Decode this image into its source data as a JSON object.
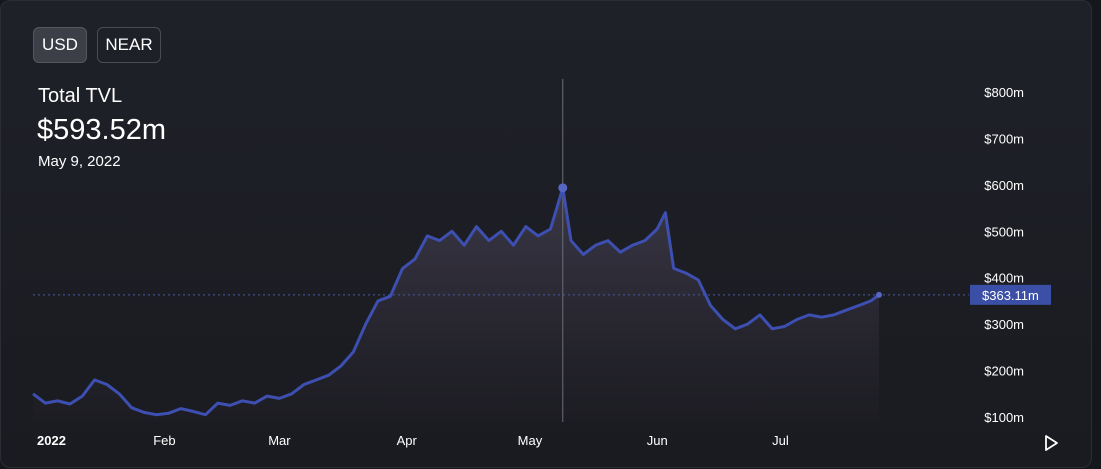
{
  "toggles": {
    "usd": "USD",
    "near": "NEAR"
  },
  "summary": {
    "label": "Total TVL",
    "value": "$593.52m",
    "date": "May 9, 2022"
  },
  "colors": {
    "line": "#3d4fb0",
    "accent_badge": "#3b4fa6",
    "crosshair": "#6b6e78",
    "area_top": "#3e3a4a",
    "area_bottom": "#1e1d24"
  },
  "chart_data": {
    "type": "area",
    "x_tick_labels": [
      "2022",
      "Feb",
      "Mar",
      "Apr",
      "May",
      "Jun",
      "Jul"
    ],
    "y_tick_labels": [
      "$800m",
      "$700m",
      "$600m",
      "$500m",
      "$400m",
      "$300m",
      "$200m",
      "$100m"
    ],
    "ylim": [
      100,
      800
    ],
    "y_unit": "millions USD",
    "current_value_label": "$363.11m",
    "current_value": 363.11,
    "hover_point": {
      "x": "2022-05-09",
      "y": 593.52
    },
    "grid": false,
    "series": [
      {
        "x": [
          "2021-12-31",
          "2022-01-03",
          "2022-01-06",
          "2022-01-09",
          "2022-01-12",
          "2022-01-15",
          "2022-01-18",
          "2022-01-21",
          "2022-01-24",
          "2022-01-27",
          "2022-01-30",
          "2022-02-02",
          "2022-02-05",
          "2022-02-08",
          "2022-02-11",
          "2022-02-14",
          "2022-02-17",
          "2022-02-20",
          "2022-02-23",
          "2022-02-26",
          "2022-03-01",
          "2022-03-04",
          "2022-03-07",
          "2022-03-10",
          "2022-03-13",
          "2022-03-16",
          "2022-03-19",
          "2022-03-22",
          "2022-03-25",
          "2022-03-28",
          "2022-03-31",
          "2022-04-03",
          "2022-04-06",
          "2022-04-09",
          "2022-04-12",
          "2022-04-15",
          "2022-04-18",
          "2022-04-21",
          "2022-04-24",
          "2022-04-27",
          "2022-04-30",
          "2022-05-03",
          "2022-05-06",
          "2022-05-09",
          "2022-05-11",
          "2022-05-14",
          "2022-05-17",
          "2022-05-20",
          "2022-05-23",
          "2022-05-26",
          "2022-05-29",
          "2022-06-01",
          "2022-06-03",
          "2022-06-05",
          "2022-06-08",
          "2022-06-11",
          "2022-06-14",
          "2022-06-17",
          "2022-06-20",
          "2022-06-23",
          "2022-06-26",
          "2022-06-29",
          "2022-07-02",
          "2022-07-05",
          "2022-07-08",
          "2022-07-11",
          "2022-07-14",
          "2022-07-17",
          "2022-07-20",
          "2022-07-23",
          "2022-07-25"
        ],
        "values": [
          150,
          130,
          135,
          128,
          145,
          180,
          170,
          150,
          120,
          110,
          105,
          108,
          118,
          112,
          105,
          130,
          125,
          135,
          130,
          145,
          140,
          150,
          170,
          180,
          190,
          210,
          240,
          300,
          350,
          360,
          420,
          440,
          490,
          480,
          500,
          470,
          510,
          480,
          500,
          470,
          510,
          490,
          505,
          593.52,
          480,
          450,
          470,
          480,
          455,
          470,
          480,
          505,
          540,
          420,
          410,
          395,
          340,
          310,
          290,
          300,
          320,
          290,
          295,
          310,
          320,
          315,
          320,
          330,
          340,
          350,
          363.11
        ]
      }
    ]
  }
}
